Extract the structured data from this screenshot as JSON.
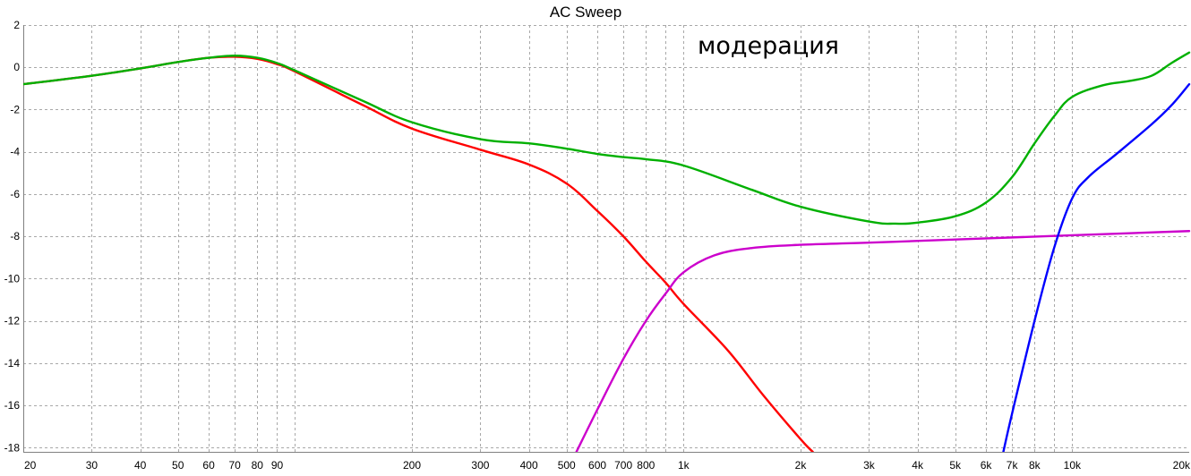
{
  "chart_data": {
    "type": "line",
    "title": "AC Sweep",
    "annotation": "модерация",
    "x_scale": "log",
    "xlim": [
      20,
      20000
    ],
    "ylim": [
      -18.2,
      2
    ],
    "grid": true,
    "x_ticks": [
      {
        "value": 20,
        "label": "20"
      },
      {
        "value": 30,
        "label": "30"
      },
      {
        "value": 40,
        "label": "40"
      },
      {
        "value": 50,
        "label": "50"
      },
      {
        "value": 60,
        "label": "60"
      },
      {
        "value": 70,
        "label": "70"
      },
      {
        "value": 80,
        "label": "80"
      },
      {
        "value": 90,
        "label": "90"
      },
      {
        "value": 100,
        "label": ""
      },
      {
        "value": 200,
        "label": "200"
      },
      {
        "value": 300,
        "label": "300"
      },
      {
        "value": 400,
        "label": "400"
      },
      {
        "value": 500,
        "label": "500"
      },
      {
        "value": 600,
        "label": "600"
      },
      {
        "value": 700,
        "label": "700"
      },
      {
        "value": 800,
        "label": "800"
      },
      {
        "value": 900,
        "label": ""
      },
      {
        "value": 1000,
        "label": "1k"
      },
      {
        "value": 2000,
        "label": "2k"
      },
      {
        "value": 3000,
        "label": "3k"
      },
      {
        "value": 4000,
        "label": "4k"
      },
      {
        "value": 5000,
        "label": "5k"
      },
      {
        "value": 6000,
        "label": "6k"
      },
      {
        "value": 7000,
        "label": "7k"
      },
      {
        "value": 8000,
        "label": "8k"
      },
      {
        "value": 9000,
        "label": ""
      },
      {
        "value": 10000,
        "label": "10k"
      },
      {
        "value": 20000,
        "label": "20k"
      }
    ],
    "y_ticks": [
      {
        "value": 2,
        "label": "2"
      },
      {
        "value": 0,
        "label": "0"
      },
      {
        "value": -2,
        "label": "-2"
      },
      {
        "value": -4,
        "label": "-4"
      },
      {
        "value": -6,
        "label": "-6"
      },
      {
        "value": -8,
        "label": "-8"
      },
      {
        "value": -10,
        "label": "-10"
      },
      {
        "value": -12,
        "label": "-12"
      },
      {
        "value": -14,
        "label": "-14"
      },
      {
        "value": -16,
        "label": "-16"
      },
      {
        "value": -18,
        "label": "-18"
      }
    ],
    "series": [
      {
        "color": "#ff0000",
        "points": [
          [
            20,
            -0.8
          ],
          [
            30,
            -0.4
          ],
          [
            40,
            -0.05
          ],
          [
            50,
            0.25
          ],
          [
            60,
            0.45
          ],
          [
            70,
            0.5
          ],
          [
            80,
            0.4
          ],
          [
            90,
            0.15
          ],
          [
            100,
            -0.2
          ],
          [
            150,
            -1.8
          ],
          [
            200,
            -2.9
          ],
          [
            300,
            -3.9
          ],
          [
            400,
            -4.6
          ],
          [
            500,
            -5.5
          ],
          [
            600,
            -6.8
          ],
          [
            700,
            -8.0
          ],
          [
            800,
            -9.2
          ],
          [
            900,
            -10.2
          ],
          [
            1000,
            -11.2
          ],
          [
            1300,
            -13.4
          ],
          [
            1600,
            -15.5
          ],
          [
            2000,
            -17.6
          ],
          [
            2150,
            -18.2
          ]
        ]
      },
      {
        "color": "#00b000",
        "points": [
          [
            20,
            -0.8
          ],
          [
            30,
            -0.4
          ],
          [
            40,
            -0.05
          ],
          [
            50,
            0.25
          ],
          [
            60,
            0.45
          ],
          [
            70,
            0.55
          ],
          [
            80,
            0.45
          ],
          [
            90,
            0.2
          ],
          [
            100,
            -0.15
          ],
          [
            150,
            -1.6
          ],
          [
            200,
            -2.6
          ],
          [
            300,
            -3.4
          ],
          [
            400,
            -3.6
          ],
          [
            500,
            -3.85
          ],
          [
            600,
            -4.1
          ],
          [
            700,
            -4.25
          ],
          [
            800,
            -4.35
          ],
          [
            1000,
            -4.65
          ],
          [
            1500,
            -5.8
          ],
          [
            2000,
            -6.6
          ],
          [
            3000,
            -7.3
          ],
          [
            3500,
            -7.4
          ],
          [
            4000,
            -7.35
          ],
          [
            5000,
            -7.05
          ],
          [
            6000,
            -6.4
          ],
          [
            7000,
            -5.2
          ],
          [
            8000,
            -3.6
          ],
          [
            9000,
            -2.3
          ],
          [
            10000,
            -1.4
          ],
          [
            12000,
            -0.85
          ],
          [
            14000,
            -0.65
          ],
          [
            16000,
            -0.4
          ],
          [
            18000,
            0.2
          ],
          [
            20000,
            0.7
          ]
        ]
      },
      {
        "color": "#cc00cc",
        "points": [
          [
            530,
            -18.2
          ],
          [
            600,
            -16.2
          ],
          [
            700,
            -13.8
          ],
          [
            800,
            -12.0
          ],
          [
            900,
            -10.7
          ],
          [
            1000,
            -9.7
          ],
          [
            1200,
            -8.9
          ],
          [
            1500,
            -8.55
          ],
          [
            2000,
            -8.4
          ],
          [
            3000,
            -8.3
          ],
          [
            5000,
            -8.15
          ],
          [
            10000,
            -7.95
          ],
          [
            20000,
            -7.75
          ]
        ]
      },
      {
        "color": "#0000ff",
        "points": [
          [
            6650,
            -18.2
          ],
          [
            7000,
            -16.4
          ],
          [
            8000,
            -12.0
          ],
          [
            9000,
            -8.5
          ],
          [
            10000,
            -6.2
          ],
          [
            11000,
            -5.2
          ],
          [
            13000,
            -4.1
          ],
          [
            16000,
            -2.7
          ],
          [
            18000,
            -1.8
          ],
          [
            20000,
            -0.8
          ]
        ]
      }
    ]
  }
}
